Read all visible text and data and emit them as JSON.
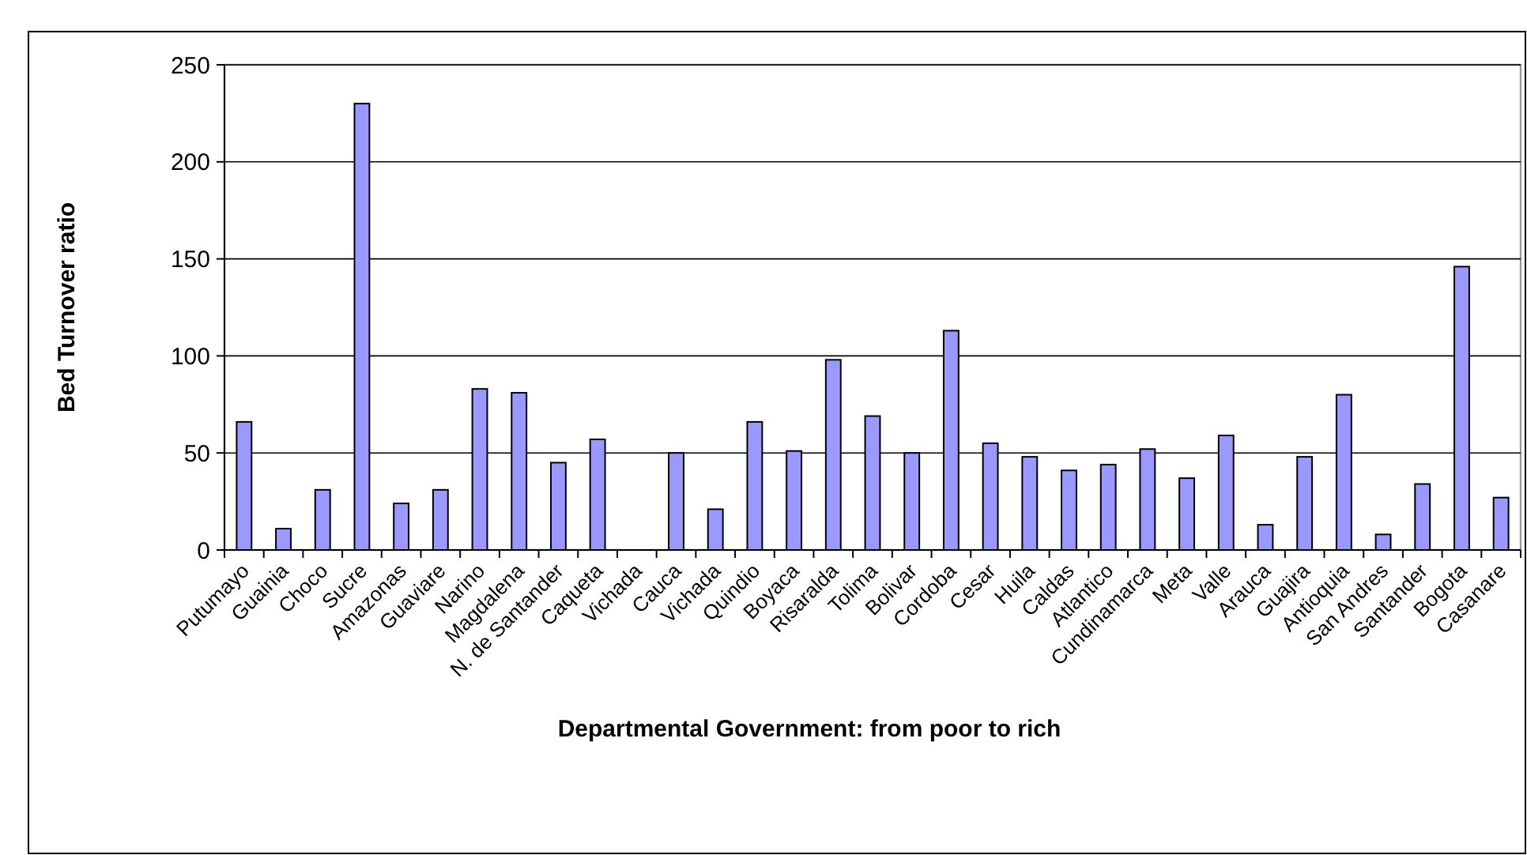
{
  "chart_data": {
    "type": "bar",
    "xlabel": "Departmental Government: from poor to rich",
    "ylabel": "Bed Turnover ratio",
    "categories": [
      "Putumayo",
      "Guainia",
      "Choco",
      "Sucre",
      "Amazonas",
      "Guaviare",
      "Narino",
      "Magdalena",
      "N. de Santander",
      "Caqueta",
      "Vichada",
      "Cauca",
      "Vichada",
      "Quindio",
      "Boyaca",
      "Risaralda",
      "Tolima",
      "Bolivar",
      "Cordoba",
      "Cesar",
      "Huila",
      "Caldas",
      "Atlantico",
      "Cundinamarca",
      "Meta",
      "Valle",
      "Arauca",
      "Guajira",
      "Antioquia",
      "San Andres",
      "Santander",
      "Bogota",
      "Casanare"
    ],
    "values": [
      66,
      11,
      31,
      230,
      24,
      31,
      83,
      81,
      45,
      57,
      null,
      50,
      21,
      66,
      51,
      98,
      69,
      50,
      113,
      55,
      48,
      41,
      44,
      52,
      37,
      59,
      13,
      48,
      80,
      8,
      34,
      146,
      27
    ],
    "color": "#9999ff",
    "ylim": [
      0,
      250
    ],
    "yticks": [
      0,
      50,
      100,
      150,
      200,
      250
    ],
    "grid": "y"
  }
}
